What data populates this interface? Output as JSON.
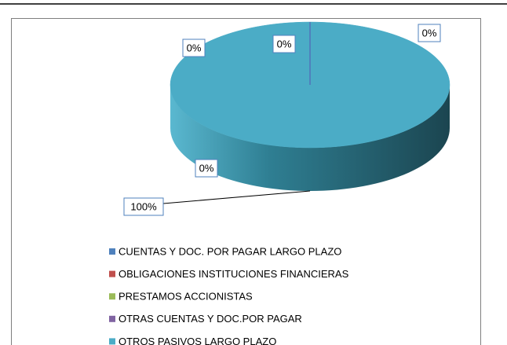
{
  "chart_data": {
    "type": "pie",
    "categories": [
      "CUENTAS Y DOC. POR PAGAR LARGO PLAZO",
      "OBLIGACIONES INSTITUCIONES FINANCIERAS",
      "PRESTAMOS ACCIONISTAS",
      "OTRAS CUENTAS Y DOC.POR PAGAR",
      "OTROS PASIVOS LARGO PLAZO"
    ],
    "values": [
      0,
      0,
      0,
      0,
      100
    ],
    "value_labels": [
      "0%",
      "0%",
      "0%",
      "0%",
      "100%"
    ],
    "colors": [
      "#4f81bd",
      "#c0504d",
      "#9bbb59",
      "#8064a2",
      "#4bacc6"
    ],
    "legend": "bottom"
  }
}
